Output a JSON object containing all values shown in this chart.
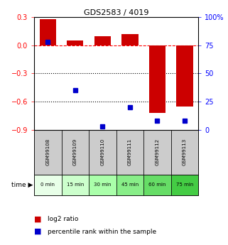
{
  "title": "GDS2583 / 4019",
  "samples": [
    "GSM99108",
    "GSM99109",
    "GSM99110",
    "GSM99111",
    "GSM99112",
    "GSM99113"
  ],
  "time_labels": [
    "0 min",
    "15 min",
    "30 min",
    "45 min",
    "60 min",
    "75 min"
  ],
  "log2_ratio": [
    0.28,
    0.05,
    0.1,
    0.12,
    -0.72,
    -0.65
  ],
  "percentile_rank": [
    78,
    35,
    3,
    20,
    8,
    8
  ],
  "bar_color": "#cc0000",
  "dot_color": "#0000cc",
  "ylim_left": [
    -0.9,
    0.3
  ],
  "ylim_right": [
    0,
    100
  ],
  "yticks_left": [
    0.3,
    0.0,
    -0.3,
    -0.6,
    -0.9
  ],
  "yticks_right": [
    100,
    75,
    50,
    25,
    0
  ],
  "hline_y": 0.0,
  "dotted_lines": [
    -0.3,
    -0.6
  ],
  "green_shades": [
    "#e8ffe8",
    "#ccffcc",
    "#aaffaa",
    "#88ee88",
    "#66dd66",
    "#44cc44"
  ],
  "gray_color": "#cccccc",
  "legend_bar_label": "log2 ratio",
  "legend_dot_label": "percentile rank within the sample",
  "time_arrow_label": "time ▶"
}
